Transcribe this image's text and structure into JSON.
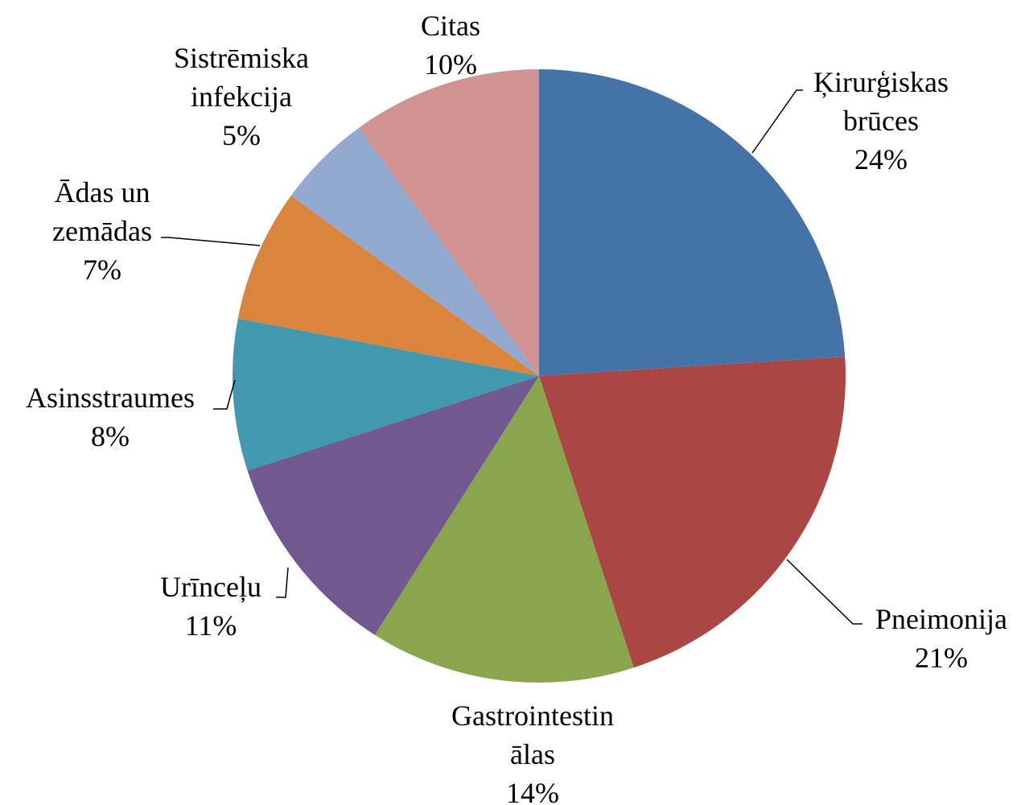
{
  "chart_data": {
    "type": "pie",
    "categories": [
      "Ķirurģiskas\nbrūces",
      "Pneimonija",
      "Gastrointestin\nālas",
      "Urīnceļu",
      "Asinsstraumes",
      "Ādas un\nzemādas",
      "Sistrēmiska\ninfekcija",
      "Citas"
    ],
    "values": [
      24,
      21,
      14,
      11,
      8,
      7,
      5,
      10
    ],
    "value_labels": [
      "24%",
      "21%",
      "14%",
      "11%",
      "8%",
      "7%",
      "5%",
      "10%"
    ],
    "colors": [
      "#4572a7",
      "#aa4643",
      "#89a54e",
      "#71588f",
      "#4198af",
      "#db843d",
      "#93a9cf",
      "#d09392"
    ]
  }
}
